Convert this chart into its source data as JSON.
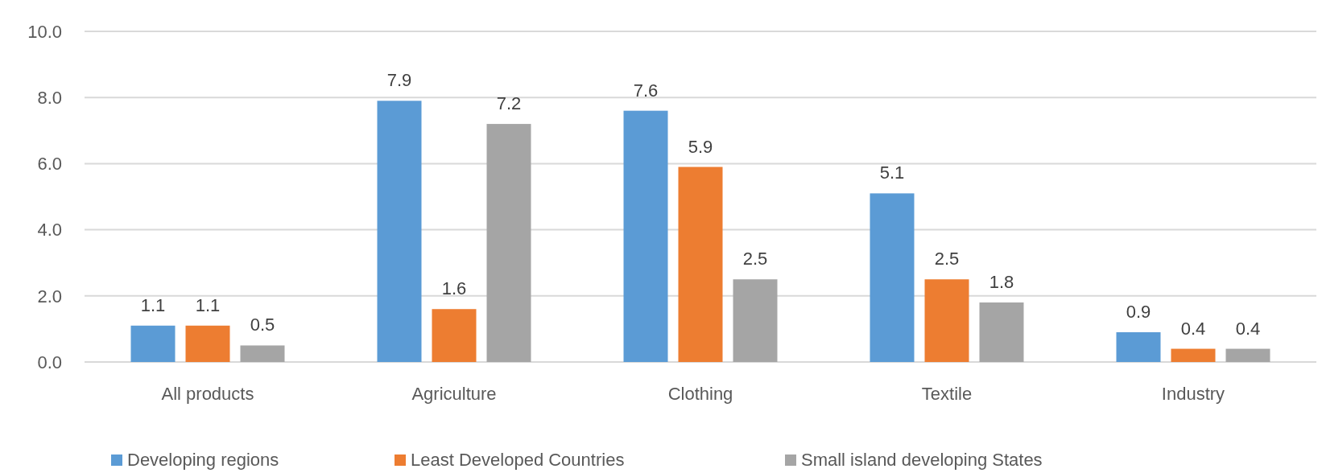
{
  "chart_data": {
    "type": "bar",
    "categories": [
      "All products",
      "Agriculture",
      "Clothing",
      "Textile",
      "Industry"
    ],
    "series": [
      {
        "name": "Developing regions",
        "color": "#5b9bd5",
        "values": [
          1.1,
          7.9,
          7.6,
          5.1,
          0.9
        ]
      },
      {
        "name": "Least Developed Countries",
        "color": "#ed7d31",
        "values": [
          1.1,
          1.6,
          5.9,
          2.5,
          0.4
        ]
      },
      {
        "name": "Small island developing States",
        "color": "#a5a5a5",
        "values": [
          0.5,
          7.2,
          2.5,
          1.8,
          0.4
        ]
      }
    ],
    "ylim": [
      0,
      10
    ],
    "yticks": [
      {
        "value": 0,
        "label": "0.0"
      },
      {
        "value": 2,
        "label": "2.0"
      },
      {
        "value": 4,
        "label": "4.0"
      },
      {
        "value": 6,
        "label": "6.0"
      },
      {
        "value": 8,
        "label": "8.0"
      },
      {
        "value": 10,
        "label": "10.0"
      }
    ],
    "grid": "y",
    "legend": "bottom",
    "data_labels": true
  }
}
